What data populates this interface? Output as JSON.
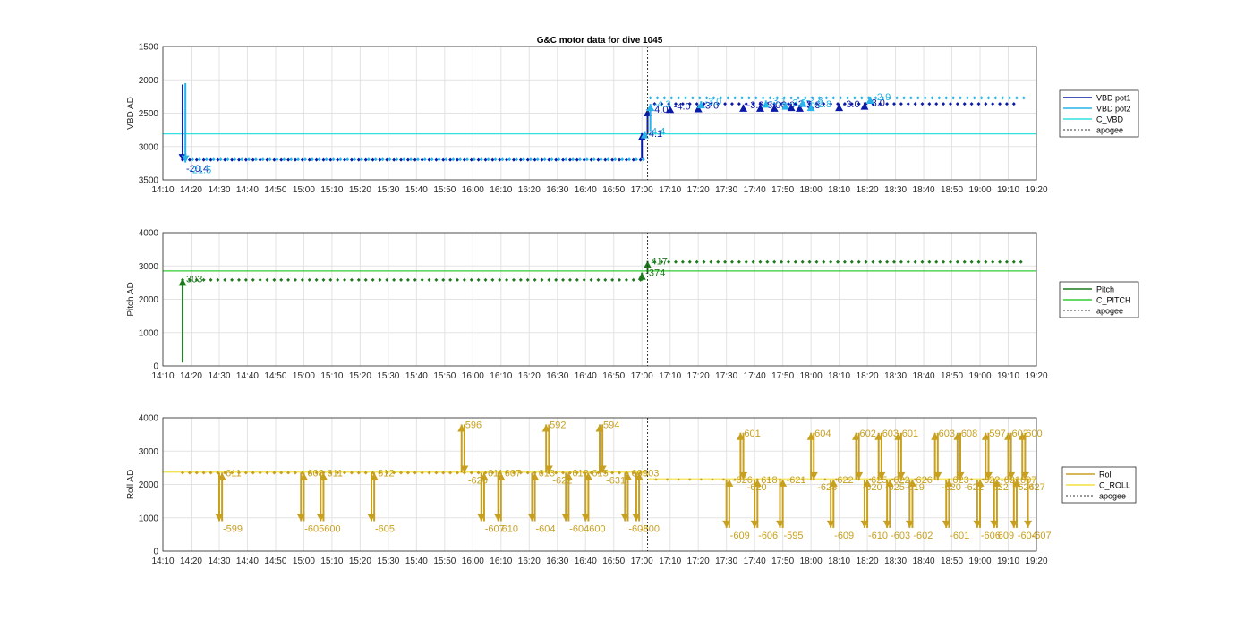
{
  "title": "G&C motor data for dive 1045",
  "chart_data": [
    {
      "type": "line",
      "ylabel": "VBD AD",
      "ylim": [
        1500,
        3500
      ],
      "y_reversed": true,
      "yticks": [
        "1500",
        "2000",
        "2500",
        "3000",
        "3500"
      ],
      "xlim": [
        "14:10",
        "19:20"
      ],
      "xticks": [
        "14:10",
        "14:20",
        "14:30",
        "14:40",
        "14:50",
        "15:00",
        "15:10",
        "15:20",
        "15:30",
        "15:40",
        "15:50",
        "16:00",
        "16:10",
        "16:20",
        "16:30",
        "16:40",
        "16:50",
        "17:00",
        "17:10",
        "17:20",
        "17:30",
        "17:40",
        "17:50",
        "18:00",
        "18:10",
        "18:20",
        "18:30",
        "18:40",
        "18:50",
        "19:00",
        "19:10",
        "19:20"
      ],
      "grid": true,
      "legend_position": "right",
      "legend": [
        "VBD pot1",
        "VBD pot2",
        "C_VBD",
        "apogee"
      ],
      "apogee": "17:02",
      "reference_line": {
        "name": "C_VBD",
        "value": 2810,
        "color": "#33e0e0"
      },
      "series": [
        {
          "name": "VBD pot1",
          "color": "#0a1aa8",
          "marker_y": 3200,
          "marker_start": "14:17",
          "marker_end": "19:14",
          "marker_step": 2.5,
          "y_after_apogee": 2360
        },
        {
          "name": "VBD pot2",
          "color": "#27b4e8",
          "marker_y": 3195,
          "marker_start": "14:18",
          "marker_end": "19:16",
          "marker_step": 2.5,
          "y_after_apogee": 2270
        }
      ],
      "moves": [
        {
          "series": 0,
          "t": "14:17",
          "from": 2070,
          "to": 3220,
          "label": "-20.4"
        },
        {
          "series": 1,
          "t": "14:18",
          "from": 2050,
          "to": 3240,
          "label": "-21.5"
        },
        {
          "series": 0,
          "t": "17:00",
          "from": 3180,
          "to": 2800,
          "label": "-4.1"
        },
        {
          "series": 1,
          "t": "17:01",
          "from": 2850,
          "to": 2770,
          "label": "-4.4"
        },
        {
          "series": 0,
          "t": "17:02",
          "from": 2800,
          "to": 2440,
          "label": "-4.0"
        },
        {
          "series": 1,
          "t": "17:03",
          "from": 2770,
          "to": 2360,
          "label": "-4.3"
        },
        {
          "series": 0,
          "t": "17:10",
          "from": 2400,
          "to": 2390,
          "label": "-4.0"
        },
        {
          "series": 0,
          "t": "17:20",
          "from": 2420,
          "to": 2380,
          "label": "-3.0"
        },
        {
          "series": 1,
          "t": "17:21",
          "from": 2360,
          "to": 2320,
          "label": "-3.0"
        },
        {
          "series": 0,
          "t": "17:36",
          "from": 2380,
          "to": 2370,
          "label": "-3.3"
        },
        {
          "series": 0,
          "t": "17:42",
          "from": 2400,
          "to": 2370,
          "label": "-3.0"
        },
        {
          "series": 1,
          "t": "17:44",
          "from": 2330,
          "to": 2310,
          "label": "-3.1"
        },
        {
          "series": 0,
          "t": "17:47",
          "from": 2390,
          "to": 2370,
          "label": "-3.0"
        },
        {
          "series": 1,
          "t": "17:51",
          "from": 2380,
          "to": 2340,
          "label": "-3.3"
        },
        {
          "series": 0,
          "t": "17:53",
          "from": 2370,
          "to": 2360,
          "label": "-3.3"
        },
        {
          "series": 0,
          "t": "17:56",
          "from": 2390,
          "to": 2370,
          "label": "-3.3"
        },
        {
          "series": 1,
          "t": "17:57",
          "from": 2330,
          "to": 2300,
          "label": "-2.8"
        },
        {
          "series": 1,
          "t": "18:00",
          "from": 2380,
          "to": 2360,
          "label": "-2.8"
        },
        {
          "series": 0,
          "t": "18:10",
          "from": 2380,
          "to": 2360,
          "label": "-3.0"
        },
        {
          "series": 0,
          "t": "18:19",
          "from": 2360,
          "to": 2340,
          "label": "-3.0"
        },
        {
          "series": 1,
          "t": "18:21",
          "from": 2270,
          "to": 2250,
          "label": "-2.9"
        }
      ]
    },
    {
      "type": "line",
      "ylabel": "Pitch AD",
      "ylim": [
        0,
        4000
      ],
      "yticks": [
        "0",
        "1000",
        "2000",
        "3000",
        "4000"
      ],
      "xlim": [
        "14:10",
        "19:20"
      ],
      "xticks": [
        "14:10",
        "14:20",
        "14:30",
        "14:40",
        "14:50",
        "15:00",
        "15:10",
        "15:20",
        "15:30",
        "15:40",
        "15:50",
        "16:00",
        "16:10",
        "16:20",
        "16:30",
        "16:40",
        "16:50",
        "17:00",
        "17:10",
        "17:20",
        "17:30",
        "17:40",
        "17:50",
        "18:00",
        "18:10",
        "18:20",
        "18:30",
        "18:40",
        "18:50",
        "19:00",
        "19:10",
        "19:20"
      ],
      "grid": true,
      "legend_position": "right",
      "legend": [
        "Pitch",
        "C_PITCH",
        "apogee"
      ],
      "apogee": "17:02",
      "reference_line": {
        "name": "C_PITCH",
        "value": 2850,
        "color": "#33cc33"
      },
      "series": [
        {
          "name": "Pitch",
          "color": "#1c7a1c",
          "marker_y": 2580,
          "marker_start": "14:17",
          "marker_end": "19:15",
          "marker_step": 2.5,
          "y_after_apogee": 3120
        }
      ],
      "moves": [
        {
          "series": 0,
          "t": "14:17",
          "from": 100,
          "to": 2620,
          "label": "303"
        },
        {
          "series": 0,
          "t": "17:00",
          "from": 2560,
          "to": 2800,
          "label": "-374"
        },
        {
          "series": 0,
          "t": "17:02",
          "from": 2800,
          "to": 3150,
          "label": "417"
        }
      ]
    },
    {
      "type": "line",
      "ylabel": "Roll AD",
      "ylim": [
        0,
        4000
      ],
      "yticks": [
        "0",
        "1000",
        "2000",
        "3000",
        "4000"
      ],
      "xlim": [
        "14:10",
        "19:20"
      ],
      "xticks": [
        "14:10",
        "14:20",
        "14:30",
        "14:40",
        "14:50",
        "15:00",
        "15:10",
        "15:20",
        "15:30",
        "15:40",
        "15:50",
        "16:00",
        "16:10",
        "16:20",
        "16:30",
        "16:40",
        "16:50",
        "17:00",
        "17:10",
        "17:20",
        "17:30",
        "17:40",
        "17:50",
        "18:00",
        "18:10",
        "18:20",
        "18:30",
        "18:40",
        "18:50",
        "19:00",
        "19:10",
        "19:20"
      ],
      "grid": true,
      "legend_position": "right",
      "legend": [
        "Roll",
        "C_ROLL",
        "apogee"
      ],
      "apogee": "17:02",
      "reference_line": {
        "name": "C_ROLL",
        "value": 2370,
        "value_after_apogee": 2170,
        "color": "#f0e040"
      },
      "series": [
        {
          "name": "Roll",
          "color": "#c8a020",
          "marker_y": 2350,
          "marker_start": "14:17",
          "marker_end": "17:00",
          "marker_step": 2.5,
          "y_after_apogee": 2150
        }
      ],
      "moves": [
        {
          "series": 0,
          "t": "14:30",
          "from": 2350,
          "to": 900,
          "label": "-599"
        },
        {
          "series": 0,
          "t": "14:31",
          "from": 900,
          "to": 2350,
          "label": "611"
        },
        {
          "series": 0,
          "t": "14:59",
          "from": 2350,
          "to": 900,
          "label": "-605"
        },
        {
          "series": 0,
          "t": "15:00",
          "from": 900,
          "to": 2350,
          "label": "608"
        },
        {
          "series": 0,
          "t": "15:06",
          "from": 2350,
          "to": 900,
          "label": "600"
        },
        {
          "series": 0,
          "t": "15:07",
          "from": 900,
          "to": 2350,
          "label": "611"
        },
        {
          "series": 0,
          "t": "15:24",
          "from": 2350,
          "to": 900,
          "label": "-605"
        },
        {
          "series": 0,
          "t": "15:25",
          "from": 900,
          "to": 2350,
          "label": "612"
        },
        {
          "series": 0,
          "t": "15:56",
          "from": 2350,
          "to": 3800,
          "label": "596"
        },
        {
          "series": 0,
          "t": "15:57",
          "from": 3800,
          "to": 2350,
          "label": "-626"
        },
        {
          "series": 0,
          "t": "16:03",
          "from": 2350,
          "to": 900,
          "label": "-607"
        },
        {
          "series": 0,
          "t": "16:04",
          "from": 900,
          "to": 2350,
          "label": "611"
        },
        {
          "series": 0,
          "t": "16:09",
          "from": 2350,
          "to": 900,
          "label": "610"
        },
        {
          "series": 0,
          "t": "16:10",
          "from": 900,
          "to": 2350,
          "label": "607"
        },
        {
          "series": 0,
          "t": "16:21",
          "from": 2350,
          "to": 900,
          "label": "-604"
        },
        {
          "series": 0,
          "t": "16:22",
          "from": 900,
          "to": 2350,
          "label": "613"
        },
        {
          "series": 0,
          "t": "16:26",
          "from": 2350,
          "to": 3800,
          "label": "592"
        },
        {
          "series": 0,
          "t": "16:27",
          "from": 3800,
          "to": 2350,
          "label": "-622"
        },
        {
          "series": 0,
          "t": "16:33",
          "from": 2350,
          "to": 900,
          "label": "-604"
        },
        {
          "series": 0,
          "t": "16:34",
          "from": 900,
          "to": 2350,
          "label": "618"
        },
        {
          "series": 0,
          "t": "16:40",
          "from": 2350,
          "to": 900,
          "label": "600"
        },
        {
          "series": 0,
          "t": "16:41",
          "from": 900,
          "to": 2350,
          "label": "615"
        },
        {
          "series": 0,
          "t": "16:45",
          "from": 2350,
          "to": 3800,
          "label": "594"
        },
        {
          "series": 0,
          "t": "16:46",
          "from": 3800,
          "to": 2350,
          "label": "-631"
        },
        {
          "series": 0,
          "t": "16:54",
          "from": 2350,
          "to": 900,
          "label": "-608"
        },
        {
          "series": 0,
          "t": "16:55",
          "from": 900,
          "to": 2350,
          "label": "609"
        },
        {
          "series": 0,
          "t": "16:58",
          "from": 2350,
          "to": 900,
          "label": "-600"
        },
        {
          "series": 0,
          "t": "16:59",
          "from": 900,
          "to": 2350,
          "label": "603"
        },
        {
          "series": 0,
          "t": "17:30",
          "from": 2150,
          "to": 700,
          "label": "-609"
        },
        {
          "series": 0,
          "t": "17:31",
          "from": 700,
          "to": 2150,
          "label": "-626"
        },
        {
          "series": 0,
          "t": "17:35",
          "from": 2150,
          "to": 3550,
          "label": "601"
        },
        {
          "series": 0,
          "t": "17:36",
          "from": 3550,
          "to": 2150,
          "label": "-620"
        },
        {
          "series": 0,
          "t": "17:40",
          "from": 2150,
          "to": 700,
          "label": "-606"
        },
        {
          "series": 0,
          "t": "17:41",
          "from": 700,
          "to": 2150,
          "label": "618"
        },
        {
          "series": 0,
          "t": "17:49",
          "from": 2150,
          "to": 700,
          "label": "-595"
        },
        {
          "series": 0,
          "t": "17:50",
          "from": 700,
          "to": 2150,
          "label": "-621"
        },
        {
          "series": 0,
          "t": "18:00",
          "from": 2150,
          "to": 3550,
          "label": "604"
        },
        {
          "series": 0,
          "t": "18:01",
          "from": 3550,
          "to": 2150,
          "label": "-623"
        },
        {
          "series": 0,
          "t": "18:07",
          "from": 2150,
          "to": 700,
          "label": "-609"
        },
        {
          "series": 0,
          "t": "18:08",
          "from": 700,
          "to": 2150,
          "label": "622"
        },
        {
          "series": 0,
          "t": "18:16",
          "from": 2150,
          "to": 3550,
          "label": "602"
        },
        {
          "series": 0,
          "t": "18:17",
          "from": 3550,
          "to": 2150,
          "label": "-620"
        },
        {
          "series": 0,
          "t": "18:19",
          "from": 2150,
          "to": 700,
          "label": "-610"
        },
        {
          "series": 0,
          "t": "18:20",
          "from": 700,
          "to": 2150,
          "label": "625"
        },
        {
          "series": 0,
          "t": "18:24",
          "from": 2150,
          "to": 3550,
          "label": "603"
        },
        {
          "series": 0,
          "t": "18:25",
          "from": 3550,
          "to": 2150,
          "label": "-625"
        },
        {
          "series": 0,
          "t": "18:27",
          "from": 2150,
          "to": 700,
          "label": "-603"
        },
        {
          "series": 0,
          "t": "18:28",
          "from": 700,
          "to": 2150,
          "label": "622"
        },
        {
          "series": 0,
          "t": "18:31",
          "from": 2150,
          "to": 3550,
          "label": "601"
        },
        {
          "series": 0,
          "t": "18:32",
          "from": 3550,
          "to": 2150,
          "label": "-619"
        },
        {
          "series": 0,
          "t": "18:35",
          "from": 2150,
          "to": 700,
          "label": "-602"
        },
        {
          "series": 0,
          "t": "18:36",
          "from": 700,
          "to": 2150,
          "label": "626"
        },
        {
          "series": 0,
          "t": "18:44",
          "from": 2150,
          "to": 3550,
          "label": "603"
        },
        {
          "series": 0,
          "t": "18:45",
          "from": 3550,
          "to": 2150,
          "label": "-620"
        },
        {
          "series": 0,
          "t": "18:48",
          "from": 2150,
          "to": 700,
          "label": "-601"
        },
        {
          "series": 0,
          "t": "18:49",
          "from": 700,
          "to": 2150,
          "label": "623"
        },
        {
          "series": 0,
          "t": "18:52",
          "from": 2150,
          "to": 3550,
          "label": "608"
        },
        {
          "series": 0,
          "t": "18:53",
          "from": 3550,
          "to": 2150,
          "label": "-622"
        },
        {
          "series": 0,
          "t": "18:59",
          "from": 2150,
          "to": 700,
          "label": "-606"
        },
        {
          "series": 0,
          "t": "19:00",
          "from": 700,
          "to": 2150,
          "label": "622"
        },
        {
          "series": 0,
          "t": "19:02",
          "from": 2150,
          "to": 3550,
          "label": "597"
        },
        {
          "series": 0,
          "t": "19:03",
          "from": 3550,
          "to": 2150,
          "label": "622"
        },
        {
          "series": 0,
          "t": "19:05",
          "from": 2150,
          "to": 700,
          "label": "609"
        },
        {
          "series": 0,
          "t": "19:06",
          "from": 700,
          "to": 2150,
          "label": "-621"
        },
        {
          "series": 0,
          "t": "19:10",
          "from": 2150,
          "to": 3550,
          "label": "602"
        },
        {
          "series": 0,
          "t": "19:11",
          "from": 3550,
          "to": 2150,
          "label": "-624"
        },
        {
          "series": 0,
          "t": "19:12",
          "from": 2150,
          "to": 700,
          "label": "-604"
        },
        {
          "series": 0,
          "t": "19:13",
          "from": 700,
          "to": 2150,
          "label": "607"
        },
        {
          "series": 0,
          "t": "19:15",
          "from": 2150,
          "to": 3550,
          "label": "600"
        },
        {
          "series": 0,
          "t": "19:16",
          "from": 3550,
          "to": 2150,
          "label": "627"
        },
        {
          "series": 0,
          "t": "19:17",
          "from": 2150,
          "to": 700,
          "label": "-607"
        }
      ]
    }
  ]
}
